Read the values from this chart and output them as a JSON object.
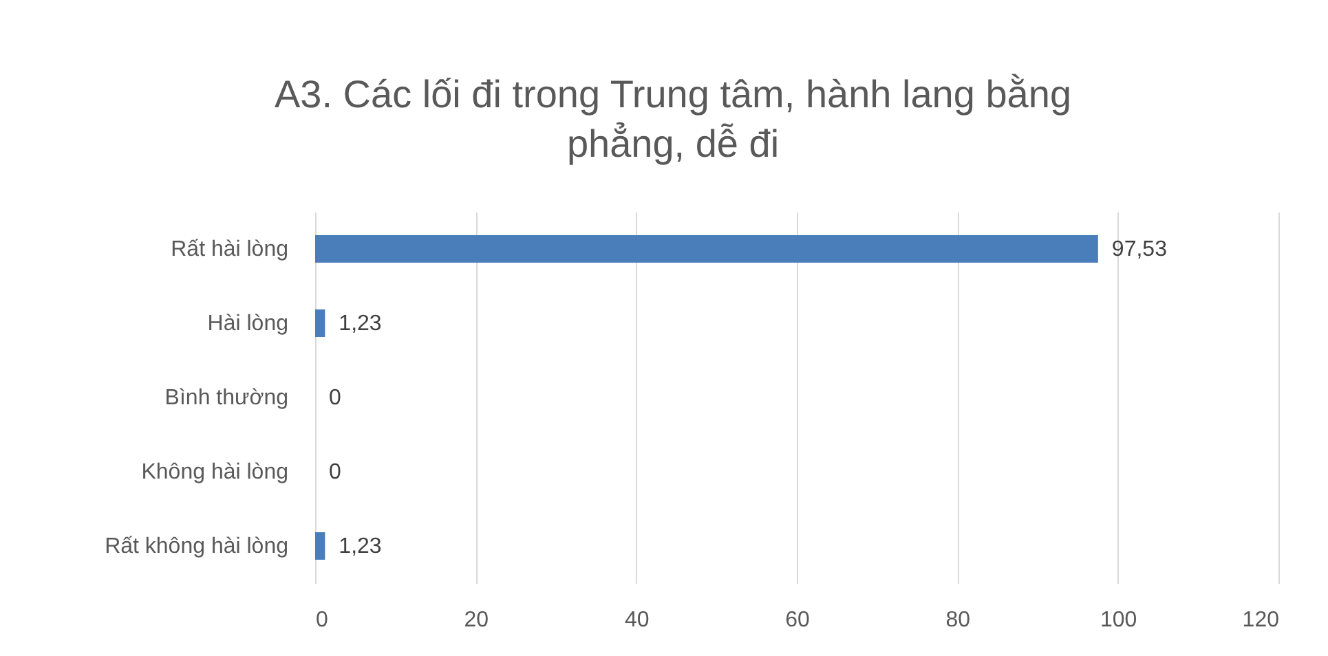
{
  "chart_data": {
    "type": "bar",
    "orientation": "horizontal",
    "title": "A3. Các lối đi trong Trung tâm, hành lang bằng phẳng, dễ đi",
    "categories": [
      "Rất hài lòng",
      "Hài lòng",
      "Bình thường",
      "Không hài lòng",
      "Rất không hài lòng"
    ],
    "values": [
      97.53,
      1.23,
      0,
      0,
      1.23
    ],
    "value_labels": [
      "97,53",
      "1,23",
      "0",
      "0",
      "1,23"
    ],
    "color": "#4a7ebb",
    "xlim": [
      0,
      120
    ],
    "xticks": [
      0,
      20,
      40,
      60,
      80,
      100,
      120
    ],
    "grid": "x"
  }
}
